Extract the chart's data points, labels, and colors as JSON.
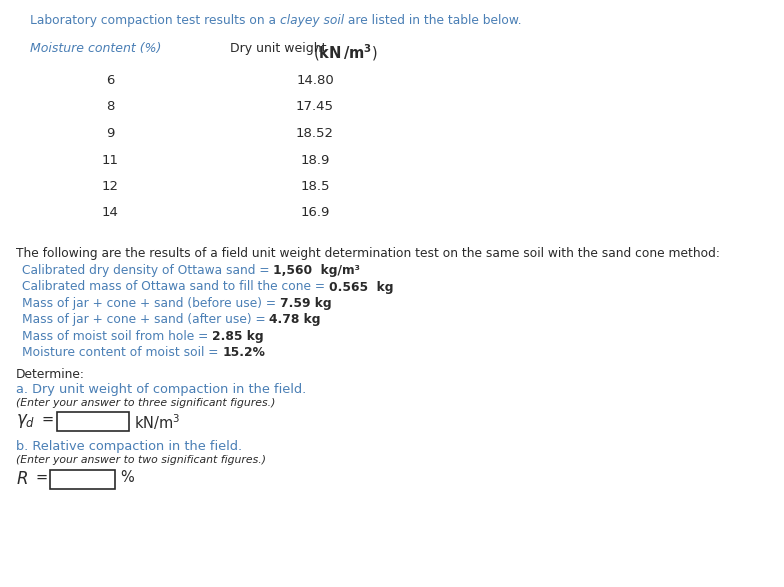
{
  "title_prefix": "Laboratory compaction test results on a ",
  "title_highlight": "clayey soil",
  "title_suffix": " are listed in the table below.",
  "header_col1": "Moisture content (%)",
  "table_moisture": [
    "6",
    "8",
    "9",
    "11",
    "12",
    "14"
  ],
  "table_dry_unit": [
    "14.80",
    "17.45",
    "18.52",
    "18.9",
    "18.5",
    "16.9"
  ],
  "field_intro": "The following are the results of a field unit weight determination test on the same soil with the sand cone method:",
  "field_lines_plain": [
    "Calibrated dry density of Ottawa sand = ",
    "Calibrated mass of Ottawa sand to fill the cone = ",
    "Mass of jar + cone + sand (before use) = ",
    "Mass of jar + cone + sand (after use) = ",
    "Mass of moist soil from hole = ",
    "Moisture content of moist soil = "
  ],
  "field_lines_bold": [
    "1,560  kg/m³",
    "0.565  kg",
    "7.59 kg",
    "4.78 kg",
    "2.85 kg",
    "15.2%"
  ],
  "plain_char_widths": [
    6.45,
    6.45,
    6.45,
    6.45,
    6.45,
    6.45
  ],
  "determine_text": "Determine:",
  "part_a_blue": "a. Dry unit weight of compaction in the field.",
  "part_a_note": "(Enter your answer to three significant figures.)",
  "part_b_blue": "b. Relative compaction in the field.",
  "part_b_note": "(Enter your answer to two significant figures.)",
  "color_blue": "#4a7fb5",
  "color_title_blue": "#4a7fb5",
  "color_black": "#2a2a2a",
  "color_field_blue": "#4a7fb5",
  "bg_color": "#ffffff"
}
